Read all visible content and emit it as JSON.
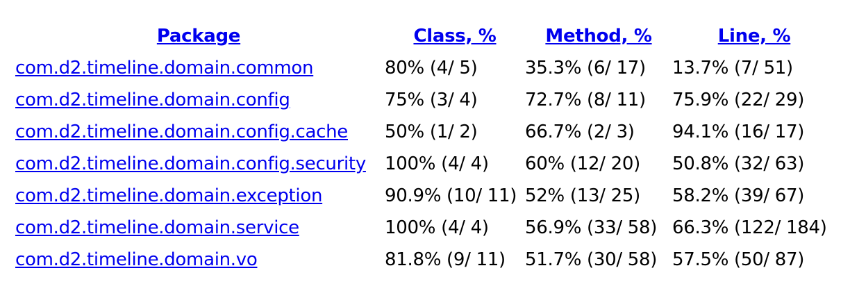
{
  "headers": {
    "package": "Package",
    "class": "Class, %",
    "method": "Method, %",
    "line": "Line, %"
  },
  "rows": [
    {
      "package": "com.d2.timeline.domain.common",
      "class": "80% (4/ 5)",
      "method": "35.3% (6/ 17)",
      "line": "13.7% (7/ 51)"
    },
    {
      "package": "com.d2.timeline.domain.config",
      "class": "75% (3/ 4)",
      "method": "72.7% (8/ 11)",
      "line": "75.9% (22/ 29)"
    },
    {
      "package": "com.d2.timeline.domain.config.cache",
      "class": "50% (1/ 2)",
      "method": "66.7% (2/ 3)",
      "line": "94.1% (16/ 17)"
    },
    {
      "package": "com.d2.timeline.domain.config.security",
      "class": "100% (4/ 4)",
      "method": "60% (12/ 20)",
      "line": "50.8% (32/ 63)"
    },
    {
      "package": "com.d2.timeline.domain.exception",
      "class": "90.9% (10/ 11)",
      "method": "52% (13/ 25)",
      "line": "58.2% (39/ 67)"
    },
    {
      "package": "com.d2.timeline.domain.service",
      "class": "100% (4/ 4)",
      "method": "56.9% (33/ 58)",
      "line": "66.3% (122/ 184)"
    },
    {
      "package": "com.d2.timeline.domain.vo",
      "class": "81.8% (9/ 11)",
      "method": "51.7% (30/ 58)",
      "line": "57.5% (50/ 87)"
    }
  ],
  "colors": {
    "link": "#0000ee",
    "text": "#000000",
    "background": "#ffffff"
  }
}
